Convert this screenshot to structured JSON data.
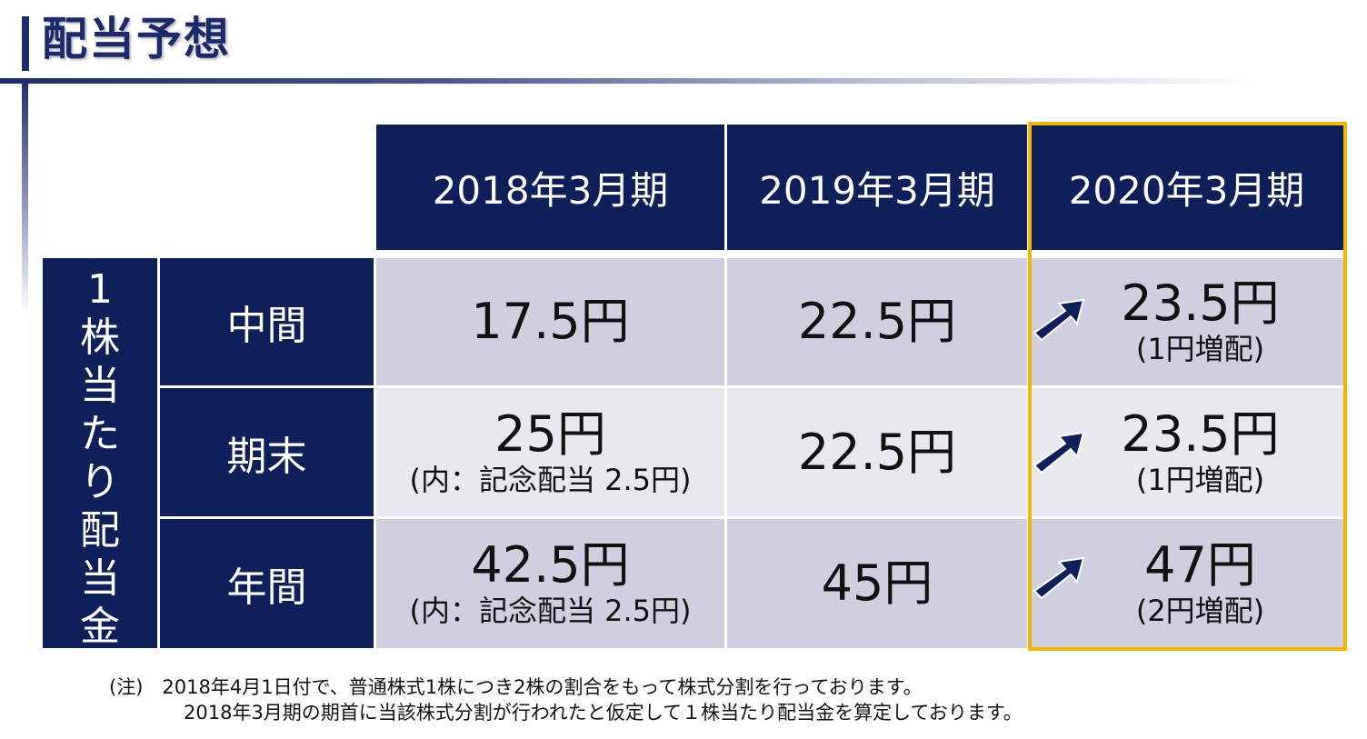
{
  "slide": {
    "title": "配当予想"
  },
  "table": {
    "headers": [
      "2018年3月期",
      "2019年3月期",
      "2020年3月期"
    ],
    "side_label": [
      "1",
      "株",
      "当",
      "た",
      "り",
      "配",
      "当",
      "金"
    ],
    "rows": [
      {
        "label": "中間",
        "cells": [
          {
            "main": "17.5円",
            "sub": ""
          },
          {
            "main": "22.5円",
            "sub": ""
          },
          {
            "main": "23.5円",
            "sub": "(1円増配)"
          }
        ]
      },
      {
        "label": "期末",
        "cells": [
          {
            "main": "25円",
            "sub": "(内：記念配当 2.5円)"
          },
          {
            "main": "22.5円",
            "sub": ""
          },
          {
            "main": "23.5円",
            "sub": "(1円増配)"
          }
        ]
      },
      {
        "label": "年間",
        "cells": [
          {
            "main": "42.5円",
            "sub": "(内：記念配当 2.5円)"
          },
          {
            "main": "45円",
            "sub": ""
          },
          {
            "main": "47円",
            "sub": "(2円増配)"
          }
        ]
      }
    ]
  },
  "note": {
    "line1": "(注)　2018年4月1日付で、普通株式1株につき2株の割合をもって株式分割を行っております。",
    "line2": "2018年3月期の期首に当該株式分割が行われたと仮定して１株当たり配当金を算定しております。"
  },
  "colors": {
    "navy": "#0f1f5a",
    "highlight": "#f3b500",
    "cell_dark": "#cfcfdf",
    "cell_light": "#e8e8ef"
  },
  "icons": {
    "increase": "arrow-up-right-icon"
  }
}
